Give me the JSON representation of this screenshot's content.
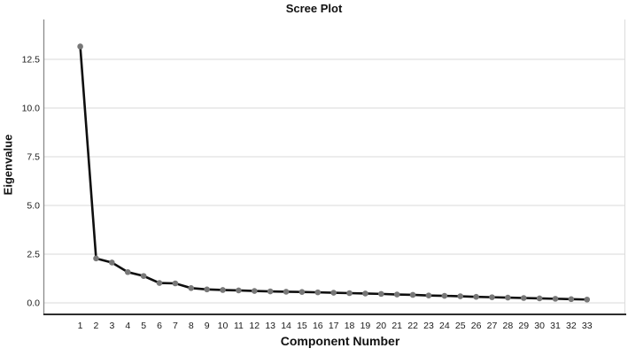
{
  "chart": {
    "title": "Scree Plot",
    "xlabel": "Component Number",
    "ylabel": "Eigenvalue"
  },
  "chart_data": {
    "type": "line",
    "title": "Scree Plot",
    "xlabel": "Component Number",
    "ylabel": "Eigenvalue",
    "x": [
      1,
      2,
      3,
      4,
      5,
      6,
      7,
      8,
      9,
      10,
      11,
      12,
      13,
      14,
      15,
      16,
      17,
      18,
      19,
      20,
      21,
      22,
      23,
      24,
      25,
      26,
      27,
      28,
      29,
      30,
      31,
      32,
      33
    ],
    "values": [
      13.16,
      2.28,
      2.07,
      1.58,
      1.38,
      1.02,
      1.0,
      0.76,
      0.69,
      0.66,
      0.64,
      0.61,
      0.59,
      0.57,
      0.56,
      0.54,
      0.52,
      0.5,
      0.48,
      0.46,
      0.43,
      0.41,
      0.38,
      0.36,
      0.34,
      0.31,
      0.29,
      0.27,
      0.25,
      0.23,
      0.21,
      0.19,
      0.17
    ],
    "y_ticks": [
      0.0,
      2.5,
      5.0,
      7.5,
      10.0,
      12.5
    ],
    "y_tick_labels": [
      "0.0",
      "2.5",
      "5.0",
      "7.5",
      "10.0",
      "12.5"
    ],
    "x_tick_labels": [
      "1",
      "2",
      "3",
      "4",
      "5",
      "6",
      "7",
      "8",
      "9",
      "10",
      "11",
      "12",
      "13",
      "14",
      "15",
      "16",
      "17",
      "18",
      "19",
      "20",
      "21",
      "22",
      "23",
      "24",
      "25",
      "26",
      "27",
      "28",
      "29",
      "30",
      "31",
      "32",
      "33"
    ],
    "ylim": [
      -0.6,
      14.5
    ],
    "grid": "horizontal",
    "legend": "none",
    "colors": {
      "line": "#0f0f0f",
      "marker": "#787878",
      "grid": "#d9d9d9",
      "y_axis": "#8a8a8a",
      "x_axis": "#2e2e2e",
      "right_border": "#dcdcdc",
      "text": "#111111"
    }
  }
}
